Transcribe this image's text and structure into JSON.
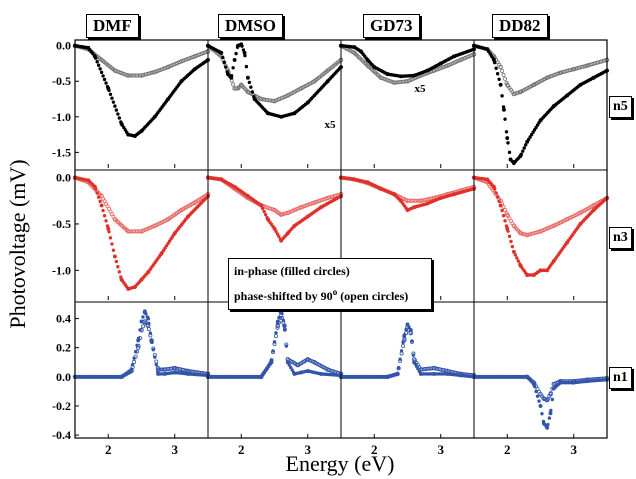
{
  "figure": {
    "xlabel": "Energy (eV)",
    "ylabel": "Photovoltage (mV)",
    "columns": [
      "DMF",
      "DMSO",
      "GD73",
      "DD82"
    ],
    "rows": [
      "n5",
      "n3",
      "n1"
    ],
    "legend": {
      "line1": "in-phase (filled circles)",
      "line2": "phase-shifted by 90",
      "line2_sup": "o",
      "line2_tail": " (open circles)"
    },
    "annotations": [
      {
        "row": 0,
        "col": 1,
        "text": "x5"
      },
      {
        "row": 0,
        "col": 2,
        "text": "x5"
      }
    ]
  },
  "colors": {
    "n5_filled": "#000000",
    "n5_open": "#777777",
    "n3_filled": "#e0312a",
    "n3_open": "#e86a66",
    "n1_filled": "#3355aa",
    "n1_open": "#3355aa"
  },
  "chart_data": {
    "type": "scatter",
    "x_range": [
      1.5,
      3.5
    ],
    "x_ticks": [
      2,
      3
    ],
    "rows": [
      {
        "name": "n5",
        "ylim": [
          -1.72,
          0.08
        ],
        "y_ticks": [
          0.0,
          -0.5,
          -1.0,
          -1.5
        ],
        "y_tick_labels": [
          "0.0",
          "-0.5",
          "-1.0",
          "-1.5"
        ],
        "panels": [
          {
            "column": "DMF",
            "filled": {
              "x": [
                1.5,
                1.7,
                1.8,
                2.0,
                2.2,
                2.3,
                2.4,
                2.5,
                2.7,
                2.9,
                3.1,
                3.3,
                3.5
              ],
              "y": [
                0.0,
                -0.03,
                -0.15,
                -0.6,
                -1.1,
                -1.25,
                -1.27,
                -1.2,
                -1.0,
                -0.75,
                -0.5,
                -0.33,
                -0.2
              ]
            },
            "open": {
              "x": [
                1.5,
                1.7,
                1.9,
                2.1,
                2.3,
                2.5,
                2.7,
                2.9,
                3.1,
                3.3,
                3.5
              ],
              "y": [
                0.0,
                -0.05,
                -0.2,
                -0.35,
                -0.42,
                -0.42,
                -0.37,
                -0.3,
                -0.22,
                -0.15,
                -0.08
              ]
            }
          },
          {
            "column": "DMSO",
            "filled": {
              "x": [
                1.5,
                1.7,
                1.8,
                1.85,
                1.9,
                1.95,
                2.0,
                2.05,
                2.1,
                2.2,
                2.4,
                2.6,
                2.8,
                3.0,
                3.3,
                3.5
              ],
              "y": [
                0.0,
                -0.1,
                -0.4,
                -0.45,
                -0.2,
                0.0,
                0.02,
                -0.1,
                -0.45,
                -0.75,
                -0.95,
                -1.0,
                -0.95,
                -0.8,
                -0.5,
                -0.3
              ]
            },
            "open": {
              "x": [
                1.5,
                1.7,
                1.8,
                1.9,
                1.95,
                2.0,
                2.1,
                2.3,
                2.5,
                2.7,
                2.9,
                3.1,
                3.3,
                3.5
              ],
              "y": [
                0.0,
                -0.15,
                -0.35,
                -0.6,
                -0.6,
                -0.55,
                -0.65,
                -0.75,
                -0.78,
                -0.7,
                -0.6,
                -0.5,
                -0.35,
                -0.2
              ]
            }
          },
          {
            "column": "GD73",
            "filled": {
              "x": [
                1.5,
                1.7,
                1.8,
                1.9,
                2.0,
                2.2,
                2.4,
                2.6,
                2.8,
                3.0,
                3.2,
                3.5
              ],
              "y": [
                0.0,
                -0.02,
                -0.08,
                -0.2,
                -0.3,
                -0.4,
                -0.43,
                -0.42,
                -0.35,
                -0.25,
                -0.15,
                -0.05
              ]
            },
            "open": {
              "x": [
                1.5,
                1.7,
                1.9,
                2.1,
                2.3,
                2.5,
                2.7,
                2.9,
                3.1,
                3.3,
                3.5
              ],
              "y": [
                0.0,
                -0.1,
                -0.28,
                -0.45,
                -0.52,
                -0.5,
                -0.42,
                -0.35,
                -0.28,
                -0.2,
                -0.12
              ]
            }
          },
          {
            "column": "DD82",
            "filled": {
              "x": [
                1.5,
                1.7,
                1.8,
                1.9,
                1.95,
                2.0,
                2.05,
                2.1,
                2.2,
                2.3,
                2.5,
                2.7,
                2.9,
                3.1,
                3.3,
                3.5
              ],
              "y": [
                0.0,
                -0.05,
                -0.2,
                -0.55,
                -0.9,
                -1.3,
                -1.6,
                -1.65,
                -1.55,
                -1.35,
                -1.05,
                -0.85,
                -0.7,
                -0.55,
                -0.45,
                -0.35
              ]
            },
            "open": {
              "x": [
                1.5,
                1.7,
                1.8,
                1.9,
                2.0,
                2.1,
                2.2,
                2.4,
                2.6,
                2.8,
                3.0,
                3.2,
                3.5
              ],
              "y": [
                0.0,
                -0.05,
                -0.15,
                -0.3,
                -0.55,
                -0.68,
                -0.65,
                -0.55,
                -0.45,
                -0.38,
                -0.33,
                -0.28,
                -0.2
              ]
            }
          }
        ]
      },
      {
        "name": "n3",
        "ylim": [
          -1.32,
          0.06
        ],
        "y_ticks": [
          0.0,
          -0.5,
          -1.0
        ],
        "y_tick_labels": [
          "0.0",
          "-0.5",
          "-1.0"
        ],
        "panels": [
          {
            "column": "DMF",
            "filled": {
              "x": [
                1.5,
                1.7,
                1.8,
                1.9,
                2.0,
                2.1,
                2.2,
                2.3,
                2.4,
                2.5,
                2.6,
                2.8,
                3.0,
                3.2,
                3.5
              ],
              "y": [
                0.0,
                -0.03,
                -0.1,
                -0.3,
                -0.55,
                -0.85,
                -1.1,
                -1.2,
                -1.18,
                -1.1,
                -1.02,
                -0.82,
                -0.6,
                -0.42,
                -0.2
              ]
            },
            "open": {
              "x": [
                1.5,
                1.7,
                1.9,
                2.1,
                2.3,
                2.5,
                2.7,
                2.9,
                3.1,
                3.3,
                3.5
              ],
              "y": [
                0.0,
                -0.05,
                -0.2,
                -0.45,
                -0.58,
                -0.58,
                -0.52,
                -0.45,
                -0.35,
                -0.27,
                -0.18
              ]
            }
          },
          {
            "column": "DMSO",
            "filled": {
              "x": [
                1.5,
                1.7,
                1.9,
                2.1,
                2.3,
                2.4,
                2.5,
                2.6,
                2.7,
                2.8,
                3.0,
                3.2,
                3.5
              ],
              "y": [
                0.0,
                -0.02,
                -0.1,
                -0.2,
                -0.3,
                -0.45,
                -0.55,
                -0.68,
                -0.6,
                -0.52,
                -0.42,
                -0.32,
                -0.2
              ]
            },
            "open": {
              "x": [
                1.5,
                1.7,
                1.9,
                2.1,
                2.3,
                2.5,
                2.6,
                2.7,
                2.9,
                3.1,
                3.3,
                3.5
              ],
              "y": [
                0.0,
                -0.02,
                -0.12,
                -0.22,
                -0.3,
                -0.35,
                -0.4,
                -0.38,
                -0.32,
                -0.27,
                -0.22,
                -0.18
              ]
            }
          },
          {
            "column": "GD73",
            "filled": {
              "x": [
                1.5,
                1.7,
                1.9,
                2.1,
                2.3,
                2.4,
                2.5,
                2.6,
                2.8,
                3.0,
                3.2,
                3.5
              ],
              "y": [
                0.0,
                -0.02,
                -0.05,
                -0.12,
                -0.18,
                -0.25,
                -0.35,
                -0.32,
                -0.28,
                -0.22,
                -0.18,
                -0.12
              ]
            },
            "open": {
              "x": [
                1.5,
                1.7,
                1.9,
                2.1,
                2.3,
                2.5,
                2.7,
                2.9,
                3.1,
                3.3,
                3.5
              ],
              "y": [
                0.0,
                -0.02,
                -0.06,
                -0.12,
                -0.18,
                -0.25,
                -0.25,
                -0.22,
                -0.18,
                -0.14,
                -0.1
              ]
            }
          },
          {
            "column": "DD82",
            "filled": {
              "x": [
                1.5,
                1.7,
                1.8,
                1.9,
                2.0,
                2.1,
                2.2,
                2.3,
                2.4,
                2.5,
                2.6,
                2.7,
                2.9,
                3.1,
                3.3,
                3.5
              ],
              "y": [
                0.0,
                -0.02,
                -0.1,
                -0.3,
                -0.55,
                -0.8,
                -0.95,
                -1.05,
                -1.05,
                -1.0,
                -1.0,
                -0.9,
                -0.7,
                -0.5,
                -0.35,
                -0.22
              ]
            },
            "open": {
              "x": [
                1.5,
                1.7,
                1.9,
                2.0,
                2.1,
                2.2,
                2.3,
                2.5,
                2.7,
                2.9,
                3.1,
                3.3,
                3.5
              ],
              "y": [
                0.0,
                -0.05,
                -0.25,
                -0.4,
                -0.52,
                -0.6,
                -0.62,
                -0.58,
                -0.52,
                -0.45,
                -0.38,
                -0.3,
                -0.22
              ]
            }
          }
        ]
      },
      {
        "name": "n1",
        "ylim": [
          -0.42,
          0.5
        ],
        "y_ticks": [
          0.4,
          0.2,
          0.0,
          -0.2,
          -0.4
        ],
        "y_tick_labels": [
          "0.4",
          "0.2",
          "0.0",
          "-0.2",
          "-0.4"
        ],
        "panels": [
          {
            "column": "DMF",
            "filled": {
              "x": [
                1.5,
                2.2,
                2.35,
                2.45,
                2.5,
                2.55,
                2.6,
                2.65,
                2.75,
                2.85,
                3.0,
                3.2,
                3.5
              ],
              "y": [
                0.0,
                0.0,
                0.05,
                0.25,
                0.38,
                0.45,
                0.4,
                0.25,
                0.02,
                0.02,
                0.03,
                0.02,
                0.01
              ]
            },
            "open": {
              "x": [
                1.5,
                2.2,
                2.35,
                2.45,
                2.5,
                2.55,
                2.6,
                2.65,
                2.75,
                2.85,
                3.0,
                3.2,
                3.5
              ],
              "y": [
                0.0,
                0.0,
                0.04,
                0.2,
                0.32,
                0.38,
                0.35,
                0.25,
                0.05,
                0.05,
                0.06,
                0.04,
                0.02
              ]
            }
          },
          {
            "column": "DMSO",
            "filled": {
              "x": [
                1.5,
                2.3,
                2.45,
                2.55,
                2.6,
                2.65,
                2.7,
                2.8,
                2.9,
                3.0,
                3.2,
                3.5
              ],
              "y": [
                0.0,
                0.0,
                0.1,
                0.38,
                0.46,
                0.35,
                0.1,
                0.02,
                0.03,
                0.04,
                0.02,
                0.01
              ]
            },
            "open": {
              "x": [
                1.5,
                2.3,
                2.45,
                2.55,
                2.6,
                2.65,
                2.7,
                2.85,
                3.0,
                3.1,
                3.3,
                3.5
              ],
              "y": [
                0.0,
                0.0,
                0.1,
                0.35,
                0.42,
                0.35,
                0.12,
                0.08,
                0.12,
                0.1,
                0.05,
                0.02
              ]
            }
          },
          {
            "column": "GD73",
            "filled": {
              "x": [
                1.5,
                2.2,
                2.35,
                2.45,
                2.5,
                2.55,
                2.6,
                2.7,
                2.9,
                3.1,
                3.3,
                3.5
              ],
              "y": [
                0.0,
                0.0,
                0.02,
                0.28,
                0.36,
                0.32,
                0.1,
                0.02,
                0.02,
                0.02,
                0.01,
                0.0
              ]
            },
            "open": {
              "x": [
                1.5,
                2.2,
                2.35,
                2.45,
                2.5,
                2.55,
                2.6,
                2.7,
                2.9,
                3.1,
                3.3,
                3.5
              ],
              "y": [
                0.0,
                0.0,
                0.02,
                0.25,
                0.34,
                0.3,
                0.12,
                0.05,
                0.06,
                0.04,
                0.02,
                0.01
              ]
            }
          },
          {
            "column": "DD82",
            "filled": {
              "x": [
                1.5,
                2.3,
                2.4,
                2.5,
                2.55,
                2.6,
                2.65,
                2.7,
                2.8,
                3.0,
                3.2,
                3.5
              ],
              "y": [
                0.0,
                0.0,
                -0.05,
                -0.2,
                -0.32,
                -0.35,
                -0.25,
                -0.08,
                -0.04,
                -0.04,
                -0.03,
                -0.02
              ]
            },
            "open": {
              "x": [
                1.5,
                2.3,
                2.4,
                2.5,
                2.55,
                2.6,
                2.65,
                2.7,
                2.8,
                3.0,
                3.2,
                3.5
              ],
              "y": [
                0.0,
                0.0,
                -0.04,
                -0.12,
                -0.15,
                -0.16,
                -0.12,
                -0.05,
                -0.03,
                -0.03,
                -0.02,
                -0.01
              ]
            }
          }
        ]
      }
    ]
  }
}
